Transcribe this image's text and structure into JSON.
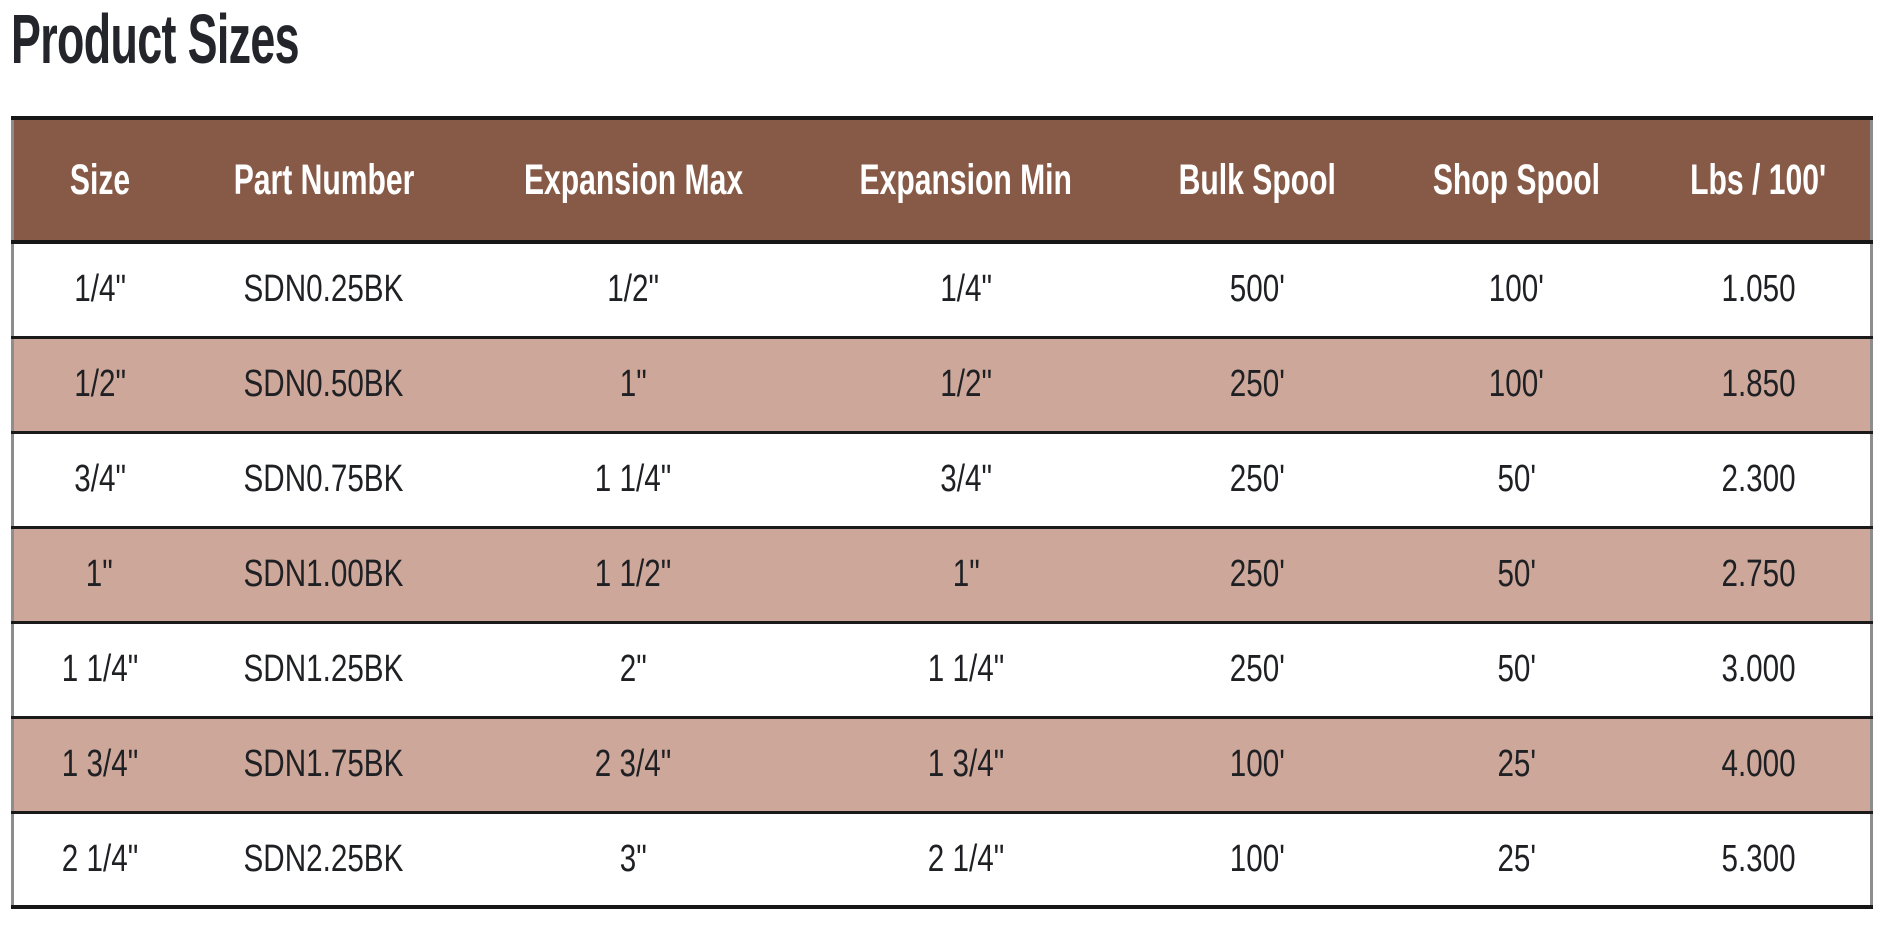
{
  "page": {
    "title": "Product Sizes"
  },
  "table": {
    "columns": [
      "Size",
      "Part Number",
      "Expansion Max",
      "Expansion Min",
      "Bulk Spool",
      "Shop Spool",
      "Lbs / 100'"
    ],
    "column_keys": [
      "size",
      "part-number",
      "expansion-max",
      "expansion-min",
      "bulk-spool",
      "shop-spool",
      "lbs-per-100"
    ],
    "rows": [
      [
        "1/4\"",
        "SDN0.25BK",
        "1/2\"",
        "1/4\"",
        "500'",
        "100'",
        "1.050"
      ],
      [
        "1/2\"",
        "SDN0.50BK",
        "1\"",
        "1/2\"",
        "250'",
        "100'",
        "1.850"
      ],
      [
        "3/4\"",
        "SDN0.75BK",
        "1 1/4\"",
        "3/4\"",
        "250'",
        "50'",
        "2.300"
      ],
      [
        "1\"",
        "SDN1.00BK",
        "1 1/2\"",
        "1\"",
        "250'",
        "50'",
        "2.750"
      ],
      [
        "1 1/4\"",
        "SDN1.25BK",
        "2\"",
        "1 1/4\"",
        "250'",
        "50'",
        "3.000"
      ],
      [
        "1 3/4\"",
        "SDN1.75BK",
        "2 3/4\"",
        "1 3/4\"",
        "100'",
        "25'",
        "4.000"
      ],
      [
        "2 1/4\"",
        "SDN2.25BK",
        "3\"",
        "2 1/4\"",
        "100'",
        "25'",
        "5.300"
      ]
    ],
    "colors": {
      "header_bg": "#875a47",
      "header_text": "#ffffff",
      "row_bg": "#ffffff",
      "row_alt_bg": "#cca79a",
      "border_dark": "#161616",
      "border_side": "#8d8d8d",
      "cell_text": "#1f2024",
      "title_text": "#24252a"
    }
  }
}
